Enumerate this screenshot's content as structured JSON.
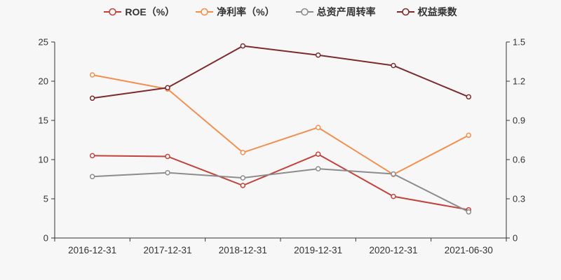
{
  "chart": {
    "background": "#f7f7f7",
    "axis_line_color": "#333333",
    "tick_label_color": "#333333",
    "legend_text_color": "#333333"
  },
  "chart_data": {
    "type": "line",
    "title": "",
    "categories": [
      "2016-12-31",
      "2017-12-31",
      "2018-12-31",
      "2019-12-31",
      "2020-12-31",
      "2021-06-30"
    ],
    "series": [
      {
        "name": "ROE（%）",
        "axis": "left",
        "color": "#c2423b",
        "values": [
          10.5,
          10.4,
          6.7,
          10.7,
          5.3,
          3.6
        ]
      },
      {
        "name": "净利率（%）",
        "axis": "left",
        "color": "#f38e4d",
        "values": [
          20.8,
          19.0,
          10.9,
          14.1,
          8.1,
          13.1
        ]
      },
      {
        "name": "总资产周转率",
        "axis": "right",
        "color": "#8c8c8c",
        "values": [
          0.47,
          0.5,
          0.46,
          0.53,
          0.49,
          0.2
        ]
      },
      {
        "name": "权益乘数",
        "axis": "right",
        "color": "#7d2a2d",
        "values": [
          1.07,
          1.15,
          1.47,
          1.4,
          1.32,
          1.08
        ]
      }
    ],
    "left_axis": {
      "tick_labels": [
        "0",
        "5",
        "10",
        "15",
        "20",
        "25"
      ],
      "range": [
        0,
        25
      ]
    },
    "right_axis": {
      "tick_labels": [
        "0",
        "0.3",
        "0.6",
        "0.9",
        "1.2",
        "1.5"
      ],
      "range": [
        0,
        1.5
      ]
    },
    "legend_position": "top",
    "grid": false,
    "marker": "hollow-circle"
  }
}
